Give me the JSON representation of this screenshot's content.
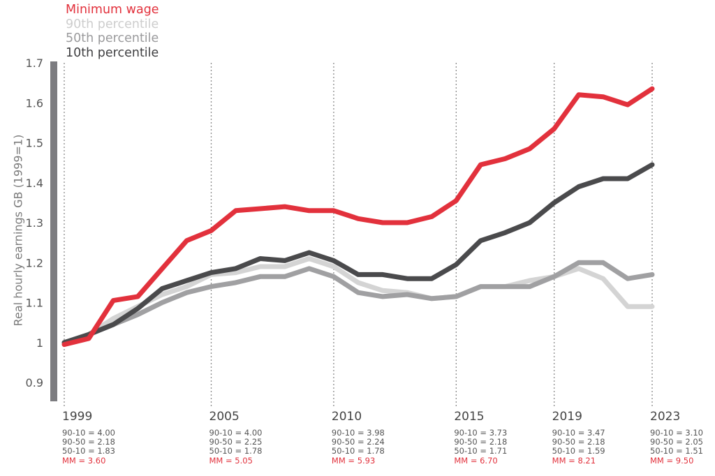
{
  "chart_data": {
    "type": "line",
    "title": "",
    "xlabel": "",
    "ylabel": "Real hourly earnings GB (1999=1)",
    "ylim": [
      0.9,
      1.7
    ],
    "yticks": [
      "1.7",
      "1.6",
      "1.5",
      "1.4",
      "1.3",
      "1.2",
      "1.1",
      "1",
      "0.9"
    ],
    "xlim": [
      1999,
      2023
    ],
    "xticks": [
      "1999",
      "2005",
      "2010",
      "2015",
      "2019",
      "2023"
    ],
    "legend": [
      "Minimum wage",
      "90th percentile",
      "50th percentile",
      "10th percentile"
    ],
    "legend_position": "top-left",
    "x": [
      1999,
      2000,
      2001,
      2002,
      2003,
      2004,
      2005,
      2006,
      2007,
      2008,
      2009,
      2010,
      2011,
      2012,
      2013,
      2014,
      2015,
      2016,
      2017,
      2018,
      2019,
      2020,
      2021,
      2022,
      2023
    ],
    "series": [
      {
        "name": "90th percentile",
        "color": "#d4d4d4",
        "values": [
          1.0,
          1.02,
          1.06,
          1.09,
          1.12,
          1.14,
          1.17,
          1.175,
          1.19,
          1.19,
          1.21,
          1.19,
          1.15,
          1.13,
          1.125,
          1.11,
          1.115,
          1.14,
          1.14,
          1.155,
          1.165,
          1.185,
          1.16,
          1.09,
          1.09
        ]
      },
      {
        "name": "50th percentile",
        "color": "#a0a0a2",
        "values": [
          1.0,
          1.02,
          1.045,
          1.07,
          1.1,
          1.125,
          1.14,
          1.15,
          1.165,
          1.165,
          1.185,
          1.165,
          1.125,
          1.115,
          1.12,
          1.11,
          1.115,
          1.14,
          1.14,
          1.14,
          1.165,
          1.2,
          1.2,
          1.16,
          1.17
        ]
      },
      {
        "name": "10th percentile",
        "color": "#4a4a4c",
        "values": [
          1.0,
          1.02,
          1.045,
          1.085,
          1.135,
          1.155,
          1.175,
          1.185,
          1.21,
          1.205,
          1.225,
          1.205,
          1.17,
          1.17,
          1.16,
          1.16,
          1.195,
          1.255,
          1.275,
          1.3,
          1.35,
          1.39,
          1.41,
          1.41,
          1.445
        ]
      },
      {
        "name": "Minimum wage",
        "color": "#e2313c",
        "values": [
          0.995,
          1.01,
          1.105,
          1.115,
          1.185,
          1.255,
          1.28,
          1.33,
          1.335,
          1.34,
          1.33,
          1.33,
          1.31,
          1.3,
          1.3,
          1.315,
          1.355,
          1.445,
          1.46,
          1.485,
          1.535,
          1.62,
          1.615,
          1.595,
          1.635
        ]
      }
    ],
    "annotations": [
      {
        "year": "1999",
        "lines": [
          "90-10 = 4.00",
          "90-50 = 2.18",
          "50-10 = 1.83"
        ],
        "mm": "MM = 3.60"
      },
      {
        "year": "2005",
        "lines": [
          "90-10 = 4.00",
          "90-50 = 2.25",
          "50-10 = 1.78"
        ],
        "mm": "MM = 5.05"
      },
      {
        "year": "2010",
        "lines": [
          "90-10 = 3.98",
          "90-50 = 2.24",
          "50-10 = 1.78"
        ],
        "mm": "MM = 5.93"
      },
      {
        "year": "2015",
        "lines": [
          "90-10 = 3.73",
          "90-50 = 2.18",
          "50-10 = 1.71"
        ],
        "mm": "MM = 6.70"
      },
      {
        "year": "2019",
        "lines": [
          "90-10 = 3.47",
          "90-50 = 2.18",
          "50-10 = 1.59"
        ],
        "mm": "MM = 8.21"
      },
      {
        "year": "2023",
        "lines": [
          "90-10 = 3.10",
          "90-50 = 2.05",
          "50-10 = 1.51"
        ],
        "mm": "MM = 9.50"
      }
    ]
  },
  "colors": {
    "minimum_wage": "#e2313c",
    "p90": "#d4d4d4",
    "p50": "#a0a0a2",
    "p10": "#4a4a4c",
    "axis_bar": "#7c7c80",
    "gridline": "#8a8a8a"
  }
}
